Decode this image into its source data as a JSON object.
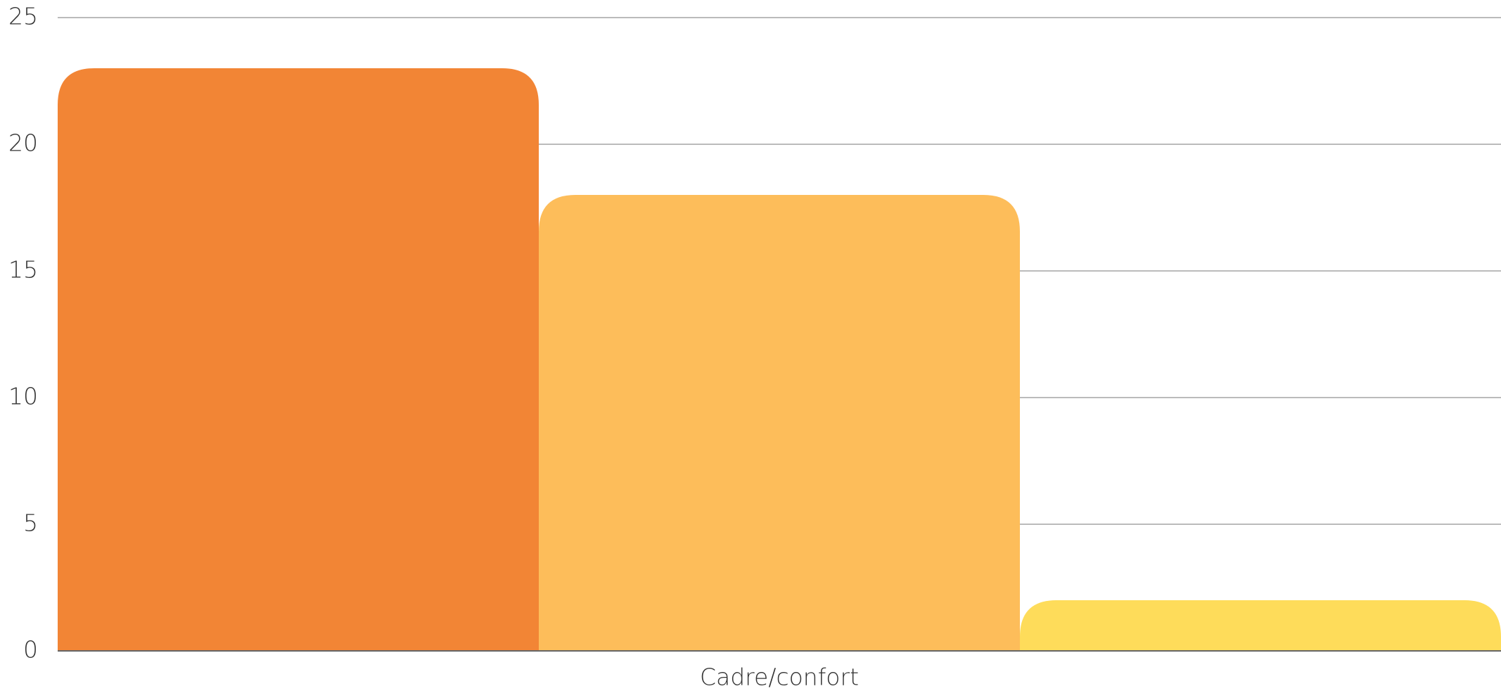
{
  "chart_data": {
    "type": "bar",
    "categories": [
      "Cadre/confort"
    ],
    "series": [
      {
        "color": "#f28535",
        "values": [
          23
        ]
      },
      {
        "color": "#fdbd5a",
        "values": [
          18
        ]
      },
      {
        "color": "#fedc5a",
        "values": [
          2
        ]
      }
    ],
    "ylim": [
      0,
      25
    ],
    "yticks": [
      0,
      5,
      10,
      15,
      20,
      25
    ],
    "grid": true
  }
}
